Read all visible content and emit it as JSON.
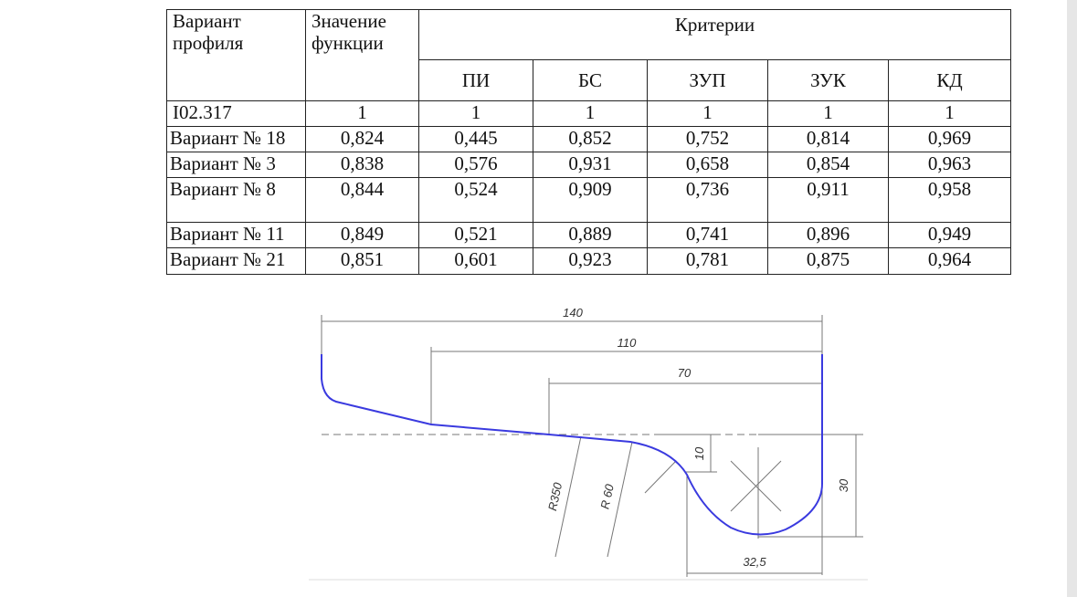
{
  "table": {
    "header": [
      "Вариант профиля",
      "Значение функции",
      "Критерии"
    ],
    "criteria": [
      "ПИ",
      "БС",
      "ЗУП",
      "ЗУК",
      "КД"
    ],
    "rows": [
      [
        "I02.317",
        "1",
        "1",
        "1",
        "1",
        "1",
        "1"
      ],
      [
        "Вариант № 18",
        "0,824",
        "0,445",
        "0,852",
        "0,752",
        "0,814",
        "0,969"
      ],
      [
        "Вариант № 3",
        "0,838",
        "0,576",
        "0,931",
        "0,658",
        "0,854",
        "0,963"
      ],
      [
        "Вариант № 8",
        "0,844",
        "0,524",
        "0,909",
        "0,736",
        "0,911",
        "0,958"
      ],
      [
        "Вариант № 11",
        "0,849",
        "0,521",
        "0,889",
        "0,741",
        "0,896",
        "0,949"
      ],
      [
        "Вариант № 21",
        "0,851",
        "0,601",
        "0,923",
        "0,781",
        "0,875",
        "0,964"
      ]
    ]
  },
  "drawing": {
    "dimensions": [
      "140",
      "110",
      "70",
      "10",
      "30",
      "32,5",
      "R350",
      "R 60"
    ]
  }
}
